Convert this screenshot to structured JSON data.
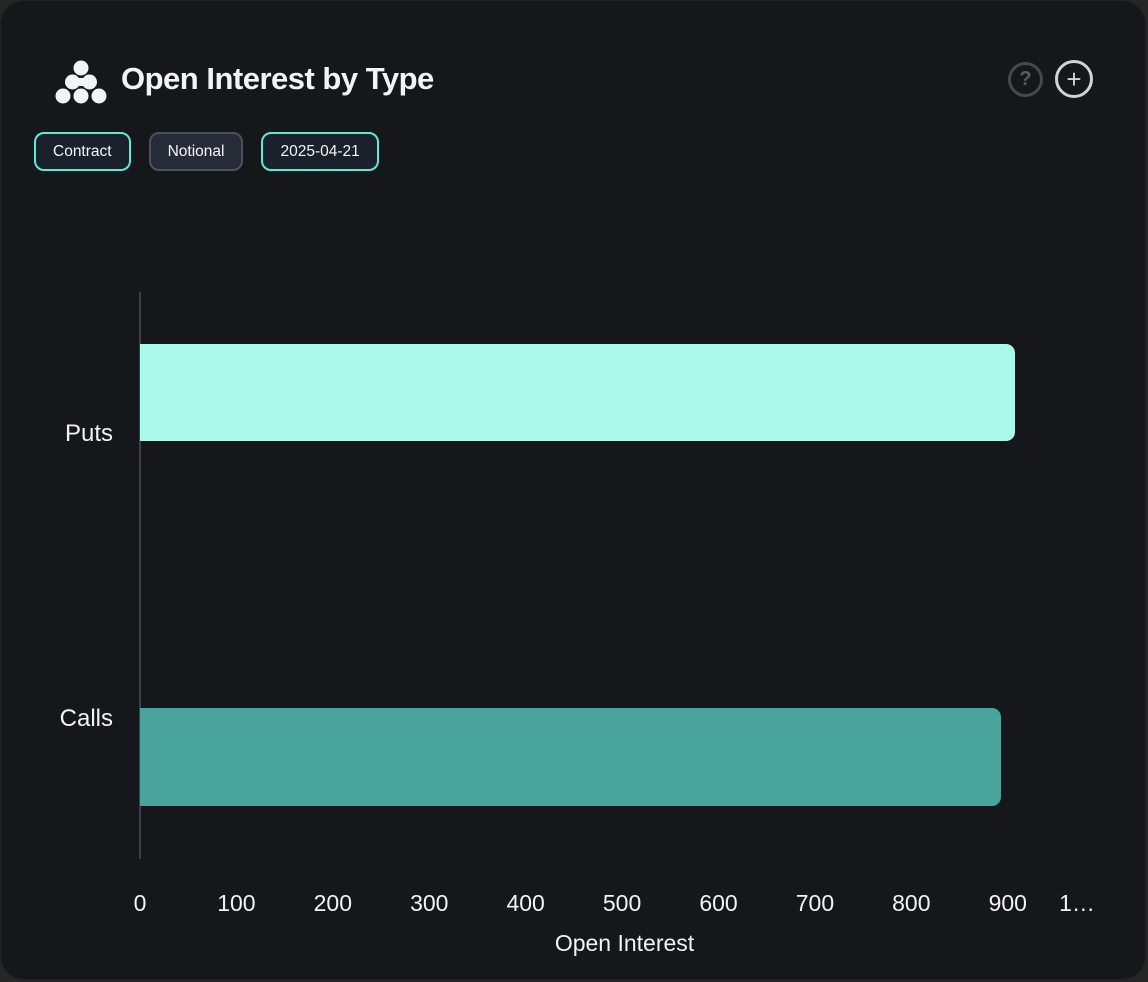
{
  "header": {
    "title": "Open Interest by Type",
    "icon": "cluster-dots-icon",
    "help_glyph": "?",
    "add_glyph": "+"
  },
  "toolbar": {
    "buttons": [
      {
        "label": "Contract",
        "variant": "teal",
        "selected": true
      },
      {
        "label": "Notional",
        "variant": "gray",
        "selected": false
      },
      {
        "label": "2025-04-21",
        "variant": "teal",
        "selected": true
      }
    ]
  },
  "colors": {
    "card_background": "#16171b",
    "accent_teal_border": "#5eead4",
    "puts_bar": "#aaf9eb",
    "calls_bar": "#48a49a",
    "axis_line": "#3c3f44",
    "text": "#f2f3f4"
  },
  "chart_data": {
    "type": "bar",
    "orientation": "horizontal",
    "title": "Open Interest by Type",
    "categories": [
      "Puts",
      "Calls"
    ],
    "values": [
      908,
      893
    ],
    "bar_colors": [
      "#aaf9eb",
      "#48a49a"
    ],
    "xlabel": "Open Interest",
    "ylabel": "",
    "xlim": [
      0,
      1005
    ],
    "xtick_values": [
      0,
      100,
      200,
      300,
      400,
      500,
      600,
      700,
      800,
      900,
      1000
    ],
    "xtick_labels": [
      "0",
      "100",
      "200",
      "300",
      "400",
      "500",
      "600",
      "700",
      "800",
      "900",
      "1…"
    ],
    "grid": false,
    "legend": "none"
  }
}
